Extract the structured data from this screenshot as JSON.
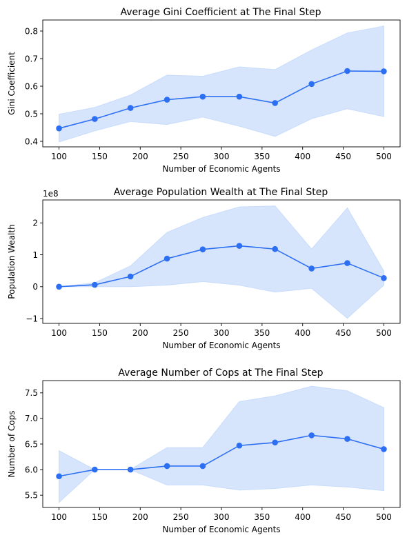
{
  "chart_data": [
    {
      "type": "line",
      "title": "Average Gini Coefficient at The Final Step",
      "xlabel": "Number of Economic Agents",
      "ylabel": "Gini Coefficient",
      "x": [
        100,
        144,
        188,
        233,
        277,
        322,
        366,
        411,
        455,
        500
      ],
      "xlim": [
        80,
        520
      ],
      "ylim": [
        0.38,
        0.84
      ],
      "xticks": [
        100,
        150,
        200,
        250,
        300,
        350,
        400,
        450,
        500
      ],
      "yticks": [
        0.4,
        0.5,
        0.6,
        0.7,
        0.8
      ],
      "ytick_labels": [
        "0.4",
        "0.5",
        "0.6",
        "0.7",
        "0.8"
      ],
      "offset_label": "",
      "series": [
        {
          "values": [
            0.447,
            0.481,
            0.521,
            0.551,
            0.562,
            0.562,
            0.539,
            0.608,
            0.655,
            0.654
          ],
          "band_lower": [
            0.398,
            0.438,
            0.472,
            0.461,
            0.488,
            0.455,
            0.418,
            0.482,
            0.518,
            0.49
          ],
          "band_upper": [
            0.498,
            0.523,
            0.568,
            0.64,
            0.636,
            0.67,
            0.66,
            0.731,
            0.793,
            0.818
          ]
        }
      ],
      "grid": false,
      "colors": {
        "line": "#2d6ff2",
        "band": "#c8dcfb"
      }
    },
    {
      "type": "line",
      "title": "Average Population Wealth at The Final Step",
      "xlabel": "Number of Economic Agents",
      "ylabel": "Population Wealth",
      "x": [
        100,
        144,
        188,
        233,
        277,
        322,
        366,
        411,
        455,
        500
      ],
      "xlim": [
        80,
        520
      ],
      "ylim": [
        -1.15,
        2.72
      ],
      "xticks": [
        100,
        150,
        200,
        250,
        300,
        350,
        400,
        450,
        500
      ],
      "yticks": [
        -1,
        0,
        1,
        2
      ],
      "ytick_labels": [
        "−1",
        "0",
        "1",
        "2"
      ],
      "offset_label": "1e8",
      "series": [
        {
          "values": [
            0.0,
            0.06,
            0.32,
            0.88,
            1.17,
            1.28,
            1.18,
            0.57,
            0.74,
            0.27
          ],
          "band_lower": [
            0.0,
            0.0,
            0.0,
            0.05,
            0.16,
            0.05,
            -0.17,
            -0.05,
            -0.99,
            0.05
          ],
          "band_upper": [
            0.0,
            0.12,
            0.65,
            1.7,
            2.17,
            2.5,
            2.53,
            1.18,
            2.47,
            0.49
          ]
        }
      ],
      "grid": false,
      "colors": {
        "line": "#2d6ff2",
        "band": "#c8dcfb"
      }
    },
    {
      "type": "line",
      "title": "Average Number of Cops at The Final Step",
      "xlabel": "Number of Economic Agents",
      "ylabel": "Number of Cops",
      "x": [
        100,
        144,
        188,
        233,
        277,
        322,
        366,
        411,
        455,
        500
      ],
      "xlim": [
        80,
        520
      ],
      "ylim": [
        5.26,
        7.74
      ],
      "xticks": [
        100,
        150,
        200,
        250,
        300,
        350,
        400,
        450,
        500
      ],
      "yticks": [
        5.5,
        6.0,
        6.5,
        7.0,
        7.5
      ],
      "ytick_labels": [
        "5.5",
        "6.0",
        "6.5",
        "7.0",
        "7.5"
      ],
      "offset_label": "",
      "series": [
        {
          "values": [
            5.87,
            6.0,
            6.0,
            6.07,
            6.07,
            6.47,
            6.53,
            6.67,
            6.6,
            6.4
          ],
          "band_lower": [
            5.36,
            6.0,
            6.0,
            5.7,
            5.7,
            5.6,
            5.63,
            5.7,
            5.66,
            5.59
          ],
          "band_upper": [
            6.37,
            6.0,
            6.0,
            6.43,
            6.43,
            7.33,
            7.44,
            7.63,
            7.54,
            7.21
          ]
        }
      ],
      "grid": false,
      "colors": {
        "line": "#2d6ff2",
        "band": "#c8dcfb"
      }
    }
  ]
}
